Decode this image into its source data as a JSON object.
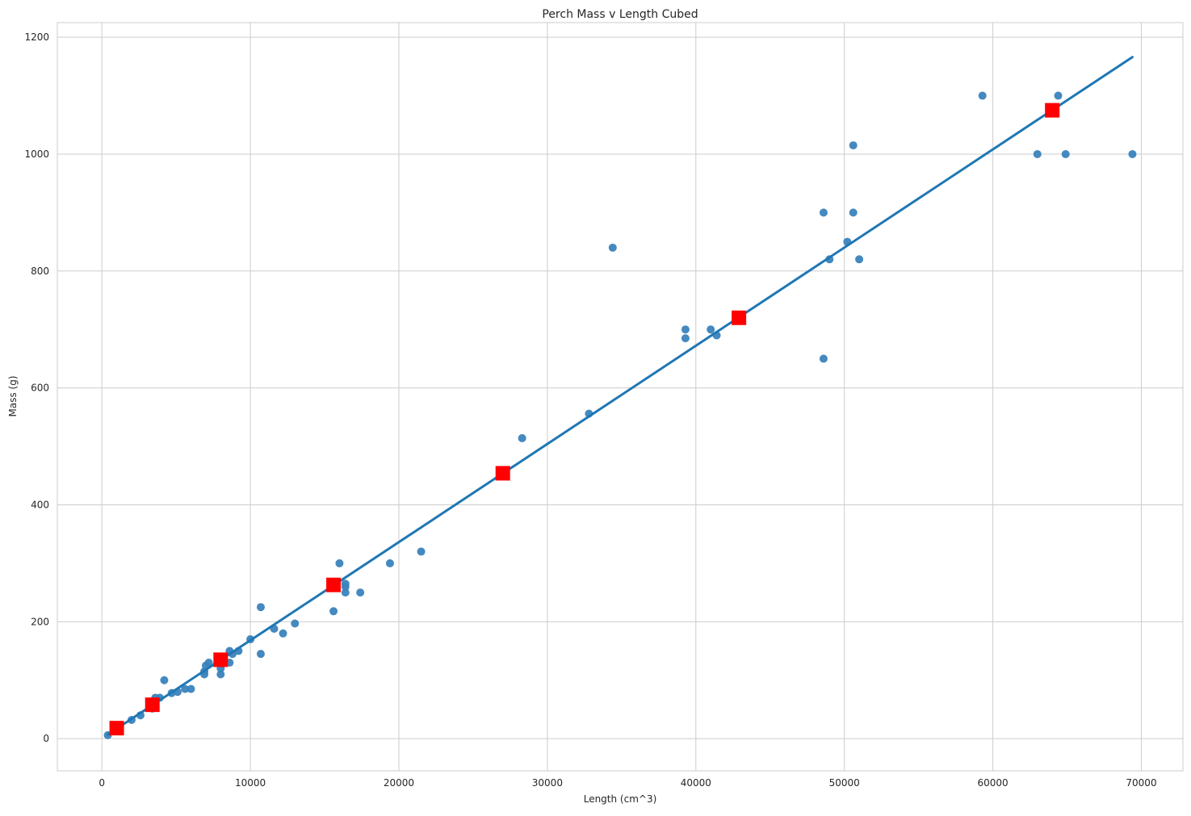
{
  "chart_data": {
    "type": "scatter",
    "title": "Perch Mass v Length Cubed",
    "xlabel": "Length (cm^3)",
    "ylabel": "Mass (g)",
    "xlim": [
      -3000,
      72800
    ],
    "ylim": [
      -55,
      1225
    ],
    "xticks": [
      0,
      10000,
      20000,
      30000,
      40000,
      50000,
      60000,
      70000
    ],
    "yticks": [
      0,
      200,
      400,
      600,
      800,
      1000,
      1200
    ],
    "grid": true,
    "colors": {
      "points": "#3a83bd",
      "line": "#1f77b4",
      "predictions": "#ff0000",
      "grid": "#cccccc"
    },
    "series": [
      {
        "kind": "points",
        "x": [
          400,
          2000,
          2600,
          3400,
          3600,
          3900,
          4200,
          4700,
          5100,
          5600,
          6000,
          6900,
          6900,
          7000,
          7200,
          8000,
          8000,
          8600,
          8600,
          8800,
          9200,
          10000,
          10700,
          10700,
          11600,
          12200,
          13000,
          15600,
          16000,
          16400,
          16400,
          16400,
          17400,
          19400,
          21500,
          28300,
          32800,
          34400,
          39300,
          39300,
          41000,
          41400,
          48600,
          48600,
          49000,
          50200,
          50600,
          50600,
          51000,
          59300,
          63000,
          64400,
          64900,
          69400
        ],
        "y": [
          5.9,
          32,
          40,
          51.5,
          70,
          70,
          100,
          78,
          80,
          85,
          85,
          110,
          115,
          125,
          130,
          110,
          120,
          130,
          150,
          145,
          150,
          170,
          225,
          145,
          188,
          180,
          197,
          218,
          300,
          260,
          265,
          250,
          250,
          300,
          320,
          514,
          556,
          840,
          685,
          700,
          700,
          690,
          900,
          650,
          820,
          850,
          900,
          1015,
          820,
          1100,
          1000,
          1100,
          1000,
          1000
        ]
      },
      {
        "kind": "regression",
        "x": [
          400,
          69400
        ],
        "y": [
          7,
          1166
        ]
      },
      {
        "kind": "predictions",
        "x": [
          1000,
          3400,
          8000,
          15600,
          27000,
          42900,
          64000
        ],
        "y": [
          18,
          58,
          135,
          263,
          454,
          720,
          1075
        ]
      }
    ]
  }
}
